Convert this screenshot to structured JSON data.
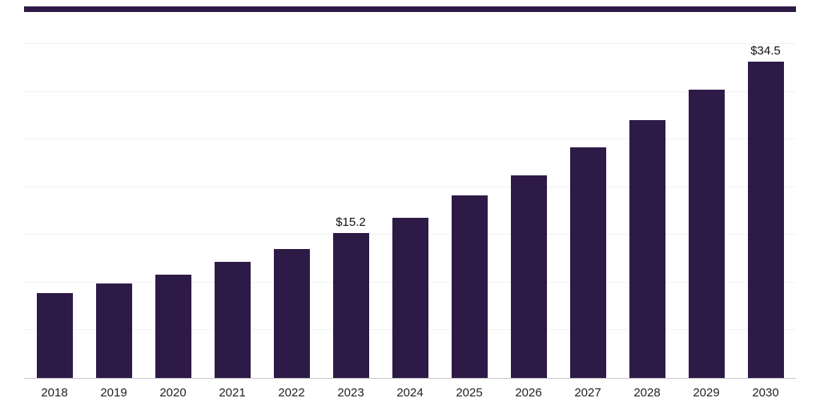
{
  "accent_color": "#2e1a47",
  "chart_data": {
    "type": "bar",
    "title": "",
    "xlabel": "",
    "ylabel": "",
    "categories": [
      "2018",
      "2019",
      "2020",
      "2021",
      "2022",
      "2023",
      "2024",
      "2025",
      "2026",
      "2027",
      "2028",
      "2029",
      "2030"
    ],
    "values": [
      8.9,
      9.9,
      10.8,
      12.2,
      13.5,
      15.2,
      16.8,
      19.1,
      21.2,
      24.2,
      27.0,
      30.2,
      34.5
    ],
    "data_labels": {
      "2023": "$15.2",
      "2030": "$34.5"
    },
    "bar_color": "#2e1a47",
    "ylim": [
      0,
      35
    ],
    "grid": "horizontal-light",
    "gridline_step": 5,
    "legend": "none",
    "y_axis_labels_visible": false
  }
}
